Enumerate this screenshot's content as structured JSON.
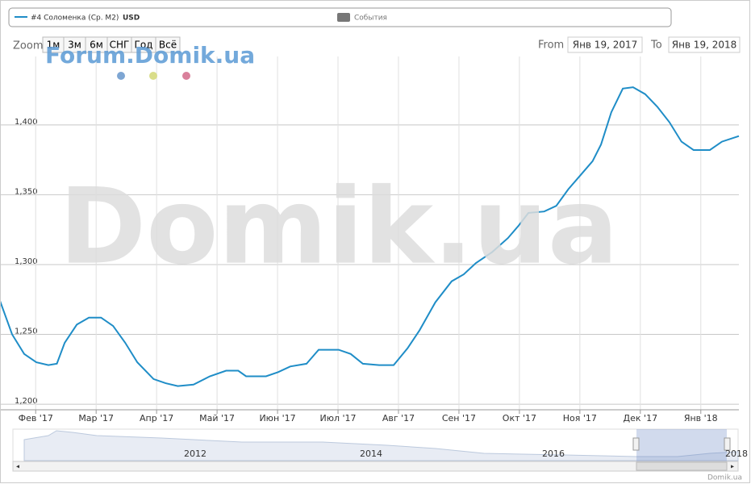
{
  "chart_data": {
    "type": "line",
    "series": [
      {
        "name": "#4 Соломенка (Ср. М2)",
        "color": "#1f8dc7",
        "x": [
          0.41,
          0.61,
          0.81,
          1.01,
          1.21,
          1.35,
          1.48,
          1.68,
          1.88,
          2.08,
          2.28,
          2.48,
          2.68,
          2.95,
          3.15,
          3.35,
          3.61,
          3.88,
          4.15,
          4.35,
          4.48,
          4.81,
          5.01,
          5.21,
          5.48,
          5.68,
          6.01,
          6.21,
          6.41,
          6.68,
          6.92,
          7.15,
          7.35,
          7.61,
          7.88,
          8.08,
          8.28,
          8.55,
          8.81,
          8.99,
          9.15,
          9.41,
          9.61,
          9.81,
          10.01,
          10.21,
          10.35,
          10.52,
          10.71,
          10.88,
          11.08,
          11.28,
          11.48,
          11.68,
          11.88,
          12.15,
          12.35,
          12.63
        ],
        "values": [
          1274,
          1250,
          1236,
          1230,
          1228,
          1229,
          1244,
          1257,
          1262,
          1262,
          1256,
          1244,
          1230,
          1218,
          1215,
          1213,
          1214,
          1220,
          1224,
          1224,
          1220,
          1220,
          1223,
          1227,
          1229,
          1239,
          1239,
          1236,
          1229,
          1228,
          1228,
          1240,
          1253,
          1273,
          1288,
          1293,
          1301,
          1309,
          1319,
          1328,
          1337,
          1338,
          1342,
          1354,
          1364,
          1374,
          1386,
          1409,
          1426,
          1427,
          1422,
          1413,
          1402,
          1388,
          1382,
          1382,
          1388,
          1392
        ]
      }
    ],
    "unit": "USD",
    "ylim": [
      1196,
      1449
    ],
    "yticks": [
      {
        "value": 1200,
        "label": "1,200"
      },
      {
        "value": 1250,
        "label": "1,250"
      },
      {
        "value": 1300,
        "label": "1,300"
      },
      {
        "value": 1350,
        "label": "1,350"
      },
      {
        "value": 1400,
        "label": "1,400"
      }
    ],
    "xlim": [
      0.41,
      12.63
    ],
    "xticks": [
      {
        "value": 1,
        "label": "Фев '17"
      },
      {
        "value": 2,
        "label": "Мар '17"
      },
      {
        "value": 3,
        "label": "Апр '17"
      },
      {
        "value": 4,
        "label": "Май '17"
      },
      {
        "value": 5,
        "label": "Июн '17"
      },
      {
        "value": 6,
        "label": "Июл '17"
      },
      {
        "value": 7,
        "label": "Авг '17"
      },
      {
        "value": 8,
        "label": "Сен '17"
      },
      {
        "value": 9,
        "label": "Окт '17"
      },
      {
        "value": 10,
        "label": "Ноя '17"
      },
      {
        "value": 11,
        "label": "Дек '17"
      },
      {
        "value": 12,
        "label": "Янв '18"
      }
    ],
    "grid": true
  },
  "legend_events": "События",
  "range_selector": {
    "zoom_label": "Zoom",
    "buttons": [
      "1м",
      "3м",
      "6м",
      "СНГ",
      "Год",
      "Всё"
    ],
    "from_label": "From",
    "from": "Янв 19, 2017",
    "to_label": "To",
    "to": "Янв 19, 2018"
  },
  "watermarks": {
    "small": "Forum.Domik.ua",
    "big": "Domik.ua"
  },
  "navigator": {
    "labels": [
      "2012",
      "2014",
      "2016",
      "2018"
    ]
  },
  "credit": "Domik.ua"
}
